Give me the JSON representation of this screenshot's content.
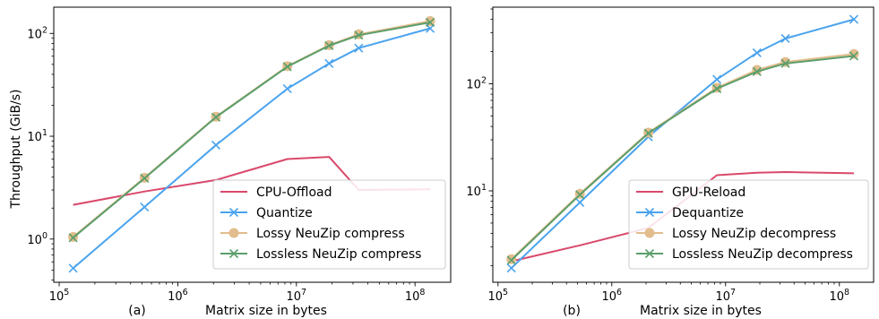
{
  "ylabel": "Throughput (GiB/s)",
  "colors": {
    "offload": "#d9486b",
    "quantize": "#4aa3ee",
    "lossy": "#e2bd8d",
    "lossless": "#5b9e6b"
  },
  "chart_data": [
    {
      "type": "line",
      "panel_label": "(a)",
      "xlabel": "Matrix size in bytes",
      "ylabel": "Throughput (GiB/s)",
      "xscale": "log",
      "yscale": "log",
      "xlim": [
        90000,
        200000000
      ],
      "ylim": [
        0.38,
        180
      ],
      "legend": "bottom-right",
      "grid": false,
      "x_ticks": [
        {
          "value": 100000,
          "base": "10",
          "exp": "5"
        },
        {
          "value": 1000000,
          "base": "10",
          "exp": "6"
        },
        {
          "value": 10000000,
          "base": "10",
          "exp": "7"
        },
        {
          "value": 100000000,
          "base": "10",
          "exp": "8"
        }
      ],
      "y_ticks": [
        {
          "value": 1,
          "base": "10",
          "exp": "0"
        },
        {
          "value": 10,
          "base": "10",
          "exp": "1"
        },
        {
          "value": 100,
          "base": "10",
          "exp": "2"
        }
      ],
      "series": [
        {
          "name": "CPU-Offload",
          "color": "#d9486b",
          "marker": "none",
          "x": [
            131072,
            524288,
            2097152,
            8388608,
            18874368,
            33554432,
            134217728
          ],
          "y": [
            2.15,
            2.9,
            3.75,
            6.0,
            6.3,
            3.0,
            3.05
          ]
        },
        {
          "name": "Quantize",
          "color": "#4aa3ee",
          "marker": "x",
          "x": [
            131072,
            524288,
            2097152,
            8388608,
            18874368,
            33554432,
            134217728
          ],
          "y": [
            0.52,
            2.05,
            8.2,
            29.0,
            51.0,
            72.0,
            112.0
          ]
        },
        {
          "name": "Lossy NeuZip compress",
          "color": "#e2bd8d",
          "marker": "o",
          "x": [
            131072,
            524288,
            2097152,
            8388608,
            18874368,
            33554432,
            134217728
          ],
          "y": [
            1.05,
            3.95,
            15.5,
            48.0,
            77.0,
            98.0,
            132.0
          ]
        },
        {
          "name": "Lossless NeuZip compress",
          "color": "#5b9e6b",
          "marker": "x",
          "x": [
            131072,
            524288,
            2097152,
            8388608,
            18874368,
            33554432,
            134217728
          ],
          "y": [
            1.03,
            3.9,
            15.3,
            47.5,
            76.0,
            96.0,
            128.0
          ]
        }
      ]
    },
    {
      "type": "line",
      "panel_label": "(b)",
      "xlabel": "Matrix size in bytes",
      "ylabel": "",
      "xscale": "log",
      "yscale": "log",
      "xlim": [
        90000,
        200000000
      ],
      "ylim": [
        1.4,
        520
      ],
      "legend": "bottom-right",
      "grid": false,
      "x_ticks": [
        {
          "value": 100000,
          "base": "10",
          "exp": "5"
        },
        {
          "value": 1000000,
          "base": "10",
          "exp": "6"
        },
        {
          "value": 10000000,
          "base": "10",
          "exp": "7"
        },
        {
          "value": 100000000,
          "base": "10",
          "exp": "8"
        }
      ],
      "y_ticks": [
        {
          "value": 10,
          "base": "10",
          "exp": "1"
        },
        {
          "value": 100,
          "base": "10",
          "exp": "2"
        }
      ],
      "series": [
        {
          "name": "GPU-Reload",
          "color": "#d9486b",
          "marker": "none",
          "x": [
            131072,
            524288,
            2097152,
            8388608,
            18874368,
            33554432,
            134217728
          ],
          "y": [
            2.2,
            3.1,
            4.5,
            14.0,
            14.8,
            15.0,
            14.6
          ]
        },
        {
          "name": "Dequantize",
          "color": "#4aa3ee",
          "marker": "x",
          "x": [
            131072,
            524288,
            2097152,
            8388608,
            18874368,
            33554432,
            134217728
          ],
          "y": [
            1.9,
            7.8,
            32.0,
            110.0,
            195.0,
            265.0,
            400.0
          ]
        },
        {
          "name": "Lossy NeuZip decompress",
          "color": "#e2bd8d",
          "marker": "o",
          "x": [
            131072,
            524288,
            2097152,
            8388608,
            18874368,
            33554432,
            134217728
          ],
          "y": [
            2.3,
            9.4,
            35.0,
            92.0,
            135.0,
            160.0,
            190.0
          ]
        },
        {
          "name": "Lossless NeuZip decompress",
          "color": "#5b9e6b",
          "marker": "x",
          "x": [
            131072,
            524288,
            2097152,
            8388608,
            18874368,
            33554432,
            134217728
          ],
          "y": [
            2.25,
            9.2,
            34.5,
            90.0,
            130.0,
            155.0,
            182.0
          ]
        }
      ]
    }
  ]
}
